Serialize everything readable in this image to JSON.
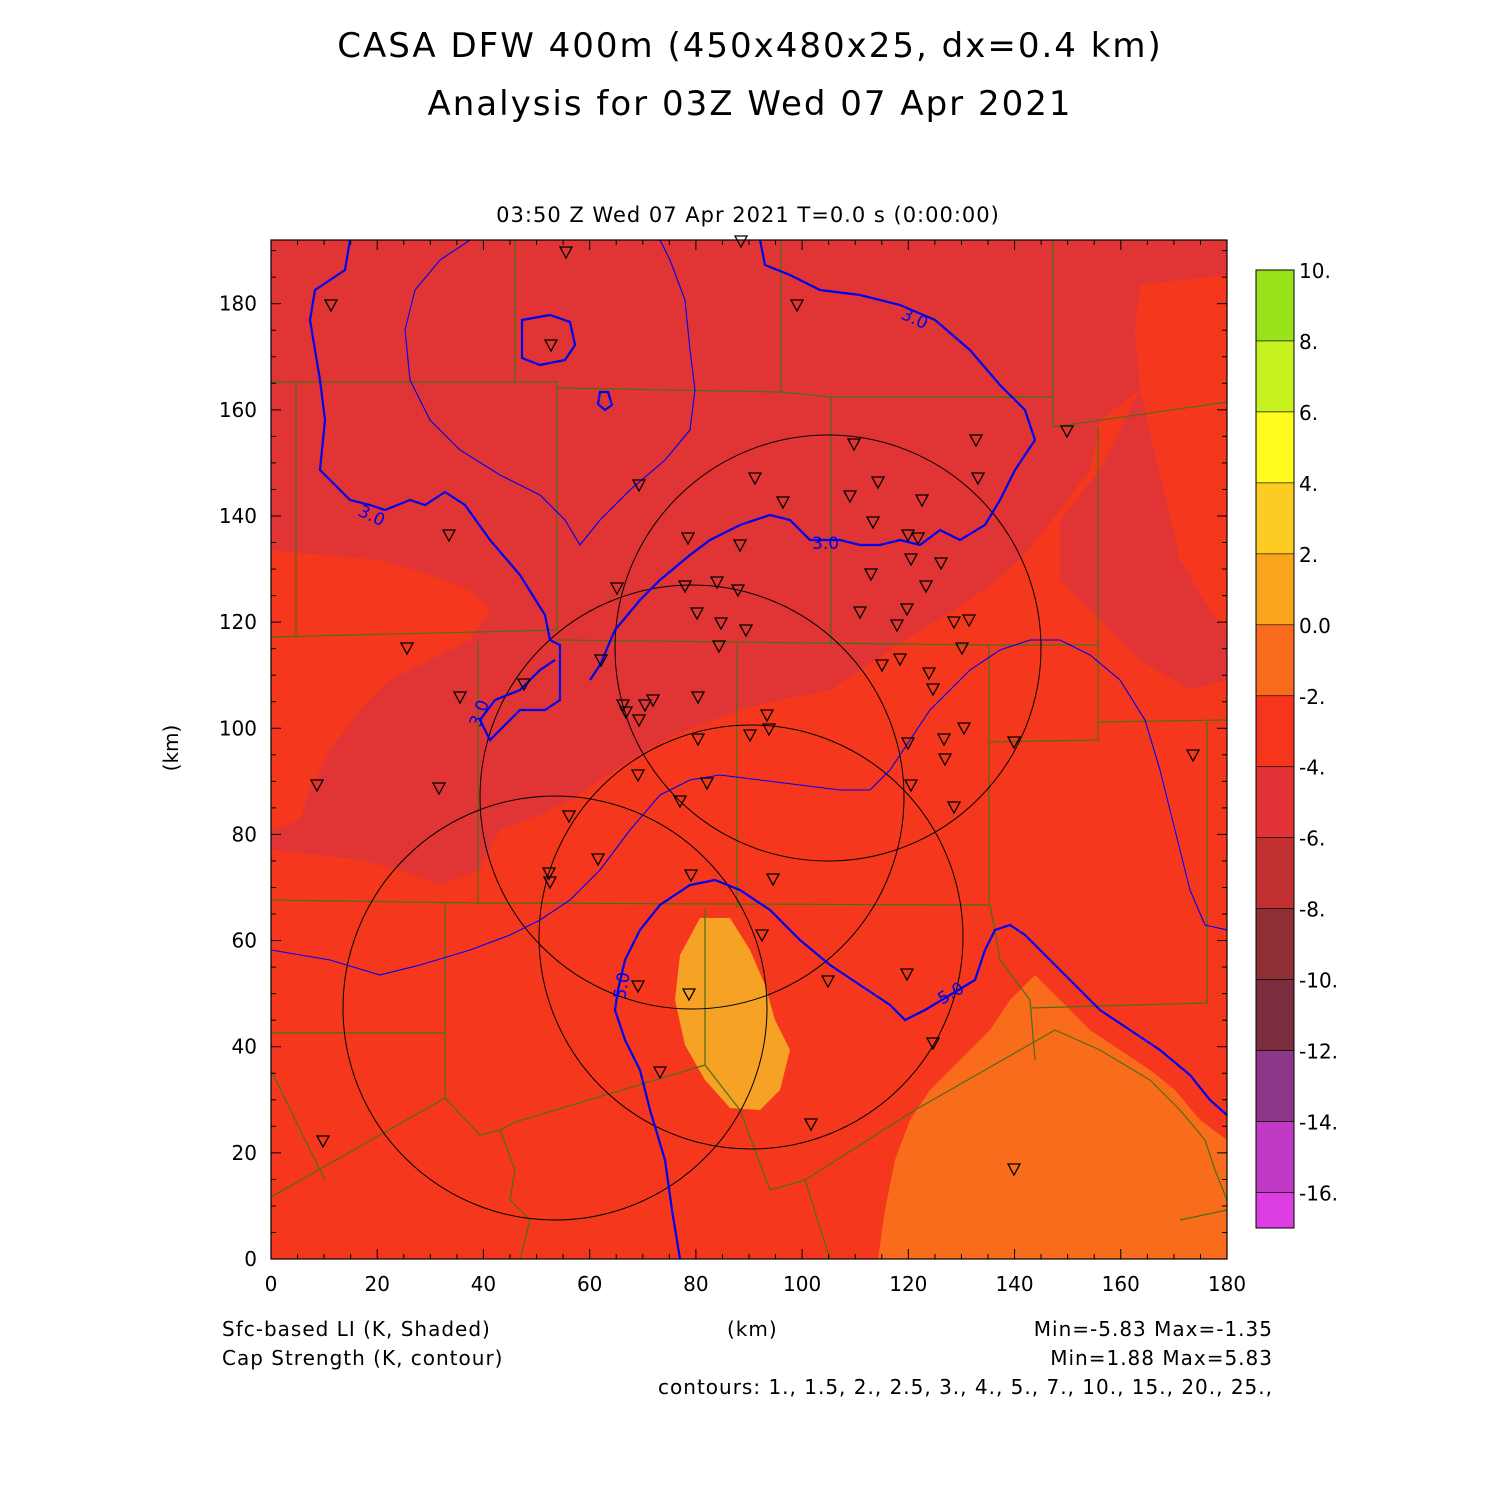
{
  "title": {
    "line1": "CASA DFW 400m (450x480x25, dx=0.4 km)",
    "line2": "Analysis for 03Z Wed 07 Apr 2021"
  },
  "plot": {
    "subtitle": "03:50 Z Wed 07 Apr 2021    T=0.0 s (0:00:00)",
    "x_axis_label": "(km)",
    "y_axis_label": "(km)",
    "x_ticks": [
      "0",
      "20",
      "40",
      "60",
      "80",
      "100",
      "120",
      "140",
      "160",
      "180"
    ],
    "y_ticks": [
      "0",
      "20",
      "40",
      "60",
      "80",
      "100",
      "120",
      "140",
      "160",
      "180"
    ],
    "x_range": [
      0,
      180
    ],
    "y_range": [
      0,
      192
    ],
    "contour_labels": [
      "3.0",
      "3.0",
      "3.0",
      "3.0",
      "5.0",
      "5.0"
    ],
    "colors": {
      "li_-4_-2": "#f5381d",
      "li_-6_-4": "#e03534",
      "li_-2_0": "#f86c1c",
      "li_0_2": "#f5a225",
      "contour": "#0000ee",
      "county_lines": "#4a6e16",
      "radar_rings": "#000000"
    }
  },
  "colorbar": {
    "labels": [
      "10.",
      "8.",
      "6.",
      "4.",
      "2.",
      "0.0",
      "-2.",
      "-4.",
      "-6.",
      "-8.",
      "-10.",
      "-12.",
      "-14.",
      "-16."
    ],
    "colors": [
      "#9ae21b",
      "#c8f21f",
      "#fffb1d",
      "#fdcc22",
      "#f9a41d",
      "#f86b1c",
      "#f6351d",
      "#e13235",
      "#c13031",
      "#8e3033",
      "#7c2d3d",
      "#8e3688",
      "#c13ac6",
      "#dd3ee4"
    ]
  },
  "footer": {
    "left1": "Sfc-based LI (K, Shaded)",
    "left2": "Cap Strength (K, contour)",
    "xlabel": "(km)",
    "right1": "Min=-5.83 Max=-1.35",
    "right2": "Min=1.88 Max=5.83",
    "contours": "contours: 1., 1.5, 2., 2.5, 3., 4., 5., 7., 10., 15., 20., 25.,"
  }
}
